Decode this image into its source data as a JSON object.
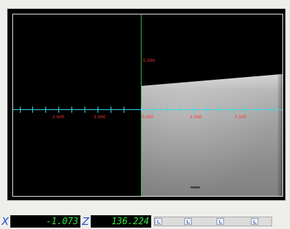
{
  "viewport": {
    "x_axis_ticks": [
      "2.000",
      "1.000",
      "0.000",
      "1.000",
      "2.000"
    ],
    "z_axis_label": "0.200"
  },
  "status_bar": {
    "x_label": "X",
    "x_value": "-1.073",
    "z_label": "Z",
    "z_value": "136.224"
  },
  "colors": {
    "horizontal_axis": "#3fd8e0",
    "vertical_axis": "#2fbf3a",
    "tick_labels": "#ff3535",
    "readout_text": "#30e840",
    "axis_letters": "#2448d8"
  },
  "icons": {
    "scroll_button": "scroll-button-icon"
  }
}
